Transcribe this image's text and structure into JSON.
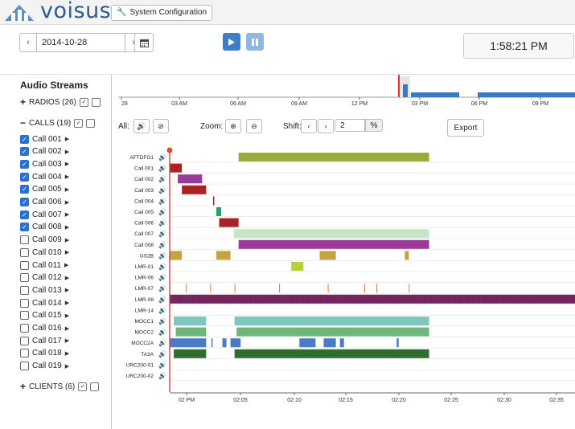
{
  "header": {
    "logo_text": "voisus",
    "system_config_label": "System Configuration",
    "wrench_icon": "wrench-icon"
  },
  "controls": {
    "date_value": "2014-10-28",
    "prev_symbol": "‹",
    "next_symbol": "›",
    "clock": "1:58:21 PM"
  },
  "sidebar": {
    "title": "Audio Streams",
    "radios": {
      "label": "RADIOS (26)",
      "sign": "+"
    },
    "calls": {
      "label": "CALLS (19)",
      "sign": "−"
    },
    "clients": {
      "label": "CLIENTS (6)",
      "sign": "+"
    },
    "call_items": [
      {
        "label": "Call 001",
        "checked": true
      },
      {
        "label": "Call 002",
        "checked": true
      },
      {
        "label": "Call 003",
        "checked": true
      },
      {
        "label": "Call 004",
        "checked": true
      },
      {
        "label": "Call 005",
        "checked": true
      },
      {
        "label": "Call 006",
        "checked": true
      },
      {
        "label": "Call 007",
        "checked": true
      },
      {
        "label": "Call 008",
        "checked": true
      },
      {
        "label": "Call 009",
        "checked": false
      },
      {
        "label": "Call 010",
        "checked": false
      },
      {
        "label": "Call 011",
        "checked": false
      },
      {
        "label": "Call 012",
        "checked": false
      },
      {
        "label": "Call 013",
        "checked": false
      },
      {
        "label": "Call 014",
        "checked": false
      },
      {
        "label": "Call 015",
        "checked": false
      },
      {
        "label": "Call 016",
        "checked": false
      },
      {
        "label": "Call 017",
        "checked": false
      },
      {
        "label": "Call 018",
        "checked": false
      },
      {
        "label": "Call 019",
        "checked": false
      }
    ]
  },
  "overview": {
    "ticks": [
      "28",
      "03 AM",
      "06 AM",
      "09 AM",
      "12 PM",
      "03 PM",
      "06 PM",
      "09 PM"
    ]
  },
  "toolbar": {
    "all_label": "All:",
    "zoom_label": "Zoom:",
    "shift_label": "Shift:",
    "shift_value": "2",
    "shift_unit": "%",
    "export_label": "Export"
  },
  "timeline": {
    "x_ticks": [
      "02 PM",
      "02:05",
      "02:10",
      "02:15",
      "02:20",
      "02:25",
      "02:30",
      "02:35"
    ],
    "rows": [
      {
        "name": "AFTDFO1",
        "color": "#9aab3a",
        "segs": [
          [
            0.17,
            0.64
          ]
        ]
      },
      {
        "name": "Call 001",
        "color": "#a82424",
        "segs": [
          [
            0.0,
            0.03
          ]
        ]
      },
      {
        "name": "Call 002",
        "color": "#9a3b9a",
        "segs": [
          [
            0.02,
            0.08
          ]
        ]
      },
      {
        "name": "Call 003",
        "color": "#a82424",
        "segs": [
          [
            0.03,
            0.09
          ]
        ]
      },
      {
        "name": "Call 004",
        "color": "#a82424",
        "segs": [
          [
            0.107,
            0.11
          ]
        ]
      },
      {
        "name": "Call 005",
        "color": "#2f9a78",
        "segs": [
          [
            0.115,
            0.127
          ]
        ]
      },
      {
        "name": "Call 006",
        "color": "#a82424",
        "segs": [
          [
            0.122,
            0.17
          ]
        ]
      },
      {
        "name": "Call 007",
        "color": "#c6e6c6",
        "segs": [
          [
            0.158,
            0.64
          ]
        ]
      },
      {
        "name": "Call 008",
        "color": "#9a3b9a",
        "segs": [
          [
            0.17,
            0.64
          ]
        ]
      },
      {
        "name": "GS2B",
        "color": "#c4a341",
        "segs": [
          [
            0.0,
            0.03
          ],
          [
            0.115,
            0.15
          ],
          [
            0.37,
            0.41
          ],
          [
            0.58,
            0.59
          ]
        ]
      },
      {
        "name": "LMR-01",
        "color": "#b8cf3a",
        "segs": [
          [
            0.3,
            0.33
          ]
        ]
      },
      {
        "name": "LMR-06",
        "color": "#cccccc",
        "segs": []
      },
      {
        "name": "LMR-07",
        "color": "#e8763c",
        "segs": [
          [
            0.04,
            0.042
          ],
          [
            0.1,
            0.102
          ],
          [
            0.16,
            0.162
          ],
          [
            0.27,
            0.272
          ],
          [
            0.39,
            0.392
          ],
          [
            0.48,
            0.482
          ],
          [
            0.51,
            0.512
          ],
          [
            0.59,
            0.592
          ]
        ]
      },
      {
        "name": "LMR-08",
        "color": "#6b2358",
        "segs": [
          [
            0.0,
            1.0
          ]
        ]
      },
      {
        "name": "LMR-14",
        "color": "#cccccc",
        "segs": []
      },
      {
        "name": "MOCC1",
        "color": "#7ec7bd",
        "segs": [
          [
            0.01,
            0.09
          ],
          [
            0.16,
            0.64
          ]
        ]
      },
      {
        "name": "MOCC2",
        "color": "#6db77a",
        "segs": [
          [
            0.015,
            0.09
          ],
          [
            0.165,
            0.64
          ]
        ]
      },
      {
        "name": "MOCC2A",
        "color": "#4b7bc4",
        "segs": [
          [
            0.0,
            0.09
          ],
          [
            0.103,
            0.106
          ],
          [
            0.13,
            0.14
          ],
          [
            0.15,
            0.175
          ],
          [
            0.32,
            0.36
          ],
          [
            0.38,
            0.41
          ],
          [
            0.42,
            0.43
          ],
          [
            0.56,
            0.565
          ]
        ]
      },
      {
        "name": "TA3A",
        "color": "#2e6d2e",
        "segs": [
          [
            0.01,
            0.09
          ],
          [
            0.16,
            0.64
          ]
        ]
      },
      {
        "name": "URC200-01",
        "color": "#cccccc",
        "segs": []
      },
      {
        "name": "URC200-02",
        "color": "#cccccc",
        "segs": []
      }
    ]
  }
}
